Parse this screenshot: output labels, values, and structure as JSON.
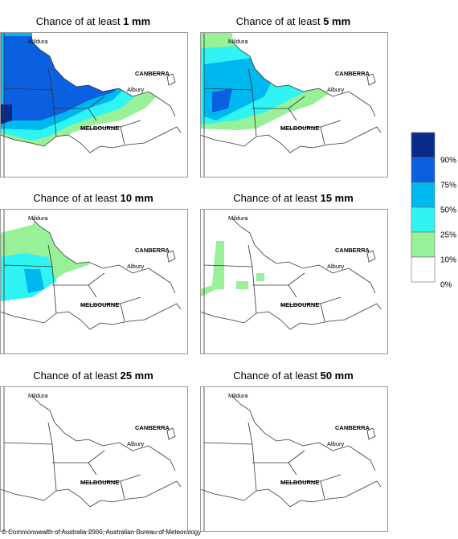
{
  "panels": [
    {
      "title": "Chance of at least",
      "amount": "1 mm"
    },
    {
      "title": "Chance of at least",
      "amount": "5 mm"
    },
    {
      "title": "Chance of at least",
      "amount": "10 mm"
    },
    {
      "title": "Chance of at least",
      "amount": "15 mm"
    },
    {
      "title": "Chance of at least",
      "amount": "25 mm"
    },
    {
      "title": "Chance of at least",
      "amount": "50 mm"
    }
  ],
  "places": {
    "mildura": "Mildura",
    "canberra": "CANBERRA",
    "albury": "Albury",
    "melbourne": "MELBOURNE"
  },
  "legend": [
    "90%",
    "75%",
    "50%",
    "25%",
    "10%",
    "0%"
  ],
  "footer": "© Commonwealth of Australia 2006, Australian Bureau of Meteorology"
}
